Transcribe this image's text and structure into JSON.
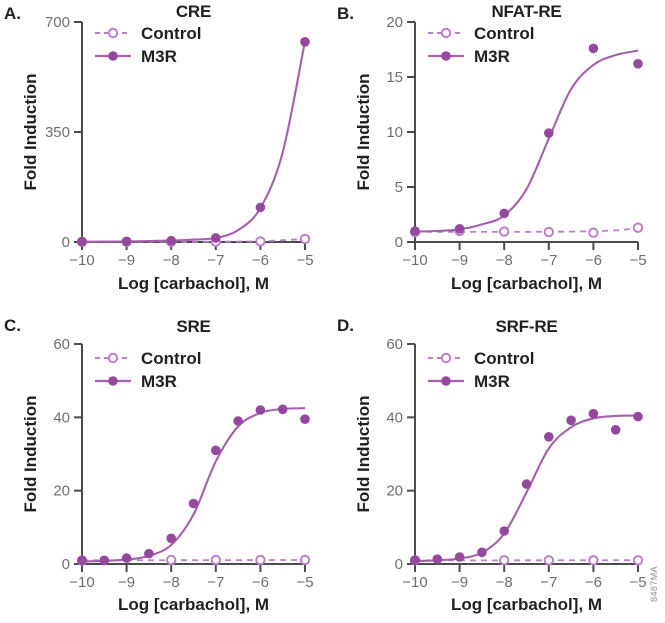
{
  "watermark": "8487MA",
  "colors": {
    "m3r_marker": "#94489E",
    "m3r_line": "#A55FAD",
    "control": "#BB80C6",
    "axis": "#4B4B4D",
    "tick_text": "#6D6E71",
    "label_text": "#231F20"
  },
  "chart_data": [
    {
      "type": "scatter",
      "panel": "A.",
      "title": "CRE",
      "xlabel": "Log [carbachol], M",
      "ylabel": "Fold Induction",
      "xlim": [
        -10,
        -5
      ],
      "ylim": [
        0,
        700
      ],
      "xticks": [
        -10,
        -9,
        -8,
        -7,
        -6,
        -5
      ],
      "xtick_labels": [
        "−10",
        "−9",
        "−8",
        "−7",
        "−6",
        "−5"
      ],
      "yticks": [
        0,
        350,
        700
      ],
      "ytick_labels": [
        "0",
        "350",
        "700"
      ],
      "legend_position": "top-left-inside",
      "grid": false,
      "series": [
        {
          "name": "Control",
          "style": "dashed_open",
          "x": [
            -10,
            -9,
            -8,
            -7,
            -6,
            -5
          ],
          "y": [
            0.5,
            0.5,
            0.5,
            1,
            2,
            10
          ],
          "curve": [
            [
              -10,
              0.8
            ],
            [
              -8,
              0.8
            ],
            [
              -7,
              1.2
            ],
            [
              -6,
              2.5
            ],
            [
              -5,
              9.5
            ]
          ]
        },
        {
          "name": "M3R",
          "style": "solid_filled",
          "x": [
            -10,
            -9,
            -8,
            -7,
            -6,
            -5
          ],
          "y": [
            1,
            2,
            4,
            13,
            110,
            637
          ],
          "curve": [
            [
              -10,
              1
            ],
            [
              -9.5,
              1.3
            ],
            [
              -9,
              2
            ],
            [
              -8.5,
              3
            ],
            [
              -8,
              4.5
            ],
            [
              -7.5,
              7.5
            ],
            [
              -7,
              13
            ],
            [
              -6.5,
              38
            ],
            [
              -6,
              108
            ],
            [
              -5.5,
              285
            ],
            [
              -5,
              640
            ]
          ]
        }
      ]
    },
    {
      "type": "scatter",
      "panel": "B.",
      "title": "NFAT-RE",
      "xlabel": "Log [carbachol], M",
      "ylabel": "Fold Induction",
      "xlim": [
        -10,
        -5
      ],
      "ylim": [
        0,
        20
      ],
      "xticks": [
        -10,
        -9,
        -8,
        -7,
        -6,
        -5
      ],
      "xtick_labels": [
        "−10",
        "−9",
        "−8",
        "−7",
        "−6",
        "−5"
      ],
      "yticks": [
        0,
        5,
        10,
        15,
        20
      ],
      "ytick_labels": [
        "0",
        "5",
        "10",
        "15",
        "20"
      ],
      "legend_position": "top-left-inside",
      "grid": false,
      "series": [
        {
          "name": "Control",
          "style": "dashed_open",
          "x": [
            -10,
            -9,
            -8,
            -7,
            -6,
            -5
          ],
          "y": [
            0.9,
            1.0,
            0.95,
            0.9,
            0.85,
            1.3
          ],
          "curve": [
            [
              -10,
              0.92
            ],
            [
              -8,
              0.92
            ],
            [
              -6.5,
              0.95
            ],
            [
              -5.5,
              1.05
            ],
            [
              -5,
              1.3
            ]
          ]
        },
        {
          "name": "M3R",
          "style": "solid_filled",
          "x": [
            -10,
            -9,
            -8,
            -7,
            -6,
            -5
          ],
          "y": [
            1.0,
            1.2,
            2.6,
            9.9,
            17.6,
            16.2
          ],
          "curve": [
            [
              -10,
              0.95
            ],
            [
              -9.5,
              1.0
            ],
            [
              -9,
              1.15
            ],
            [
              -8.5,
              1.6
            ],
            [
              -8,
              2.4
            ],
            [
              -7.5,
              4.8
            ],
            [
              -7,
              9.4
            ],
            [
              -6.5,
              13.9
            ],
            [
              -6,
              16.1
            ],
            [
              -5.5,
              17.0
            ],
            [
              -5,
              17.4
            ]
          ]
        }
      ]
    },
    {
      "type": "scatter",
      "panel": "C.",
      "title": "SRE",
      "xlabel": "Log [carbachol], M",
      "ylabel": "Fold Induction",
      "xlim": [
        -10,
        -5
      ],
      "ylim": [
        0,
        60
      ],
      "xticks": [
        -10,
        -9,
        -8,
        -7,
        -6,
        -5
      ],
      "xtick_labels": [
        "−10",
        "−9",
        "−8",
        "−7",
        "−6",
        "−5"
      ],
      "yticks": [
        0,
        20,
        40,
        60
      ],
      "ytick_labels": [
        "0",
        "20",
        "40",
        "60"
      ],
      "legend_position": "top-left-inside",
      "grid": false,
      "series": [
        {
          "name": "Control",
          "style": "dashed_open",
          "x": [
            -10,
            -8,
            -7,
            -6,
            -5
          ],
          "y": [
            0.9,
            1.1,
            1.1,
            1.1,
            1.1
          ],
          "curve": [
            [
              -10,
              1.0
            ],
            [
              -7.5,
              1.05
            ],
            [
              -5,
              1.1
            ]
          ]
        },
        {
          "name": "M3R",
          "style": "solid_filled",
          "x": [
            -10,
            -9.5,
            -9,
            -8.5,
            -8,
            -7.5,
            -7,
            -6.5,
            -6,
            -5.5,
            -5
          ],
          "y": [
            1.0,
            1.0,
            1.6,
            2.8,
            7.0,
            16.5,
            31,
            39,
            42,
            42.2,
            39.5
          ],
          "curve": [
            [
              -10,
              0.7
            ],
            [
              -9.5,
              0.85
            ],
            [
              -9,
              1.2
            ],
            [
              -8.5,
              2.2
            ],
            [
              -8,
              5.2
            ],
            [
              -7.5,
              13.5
            ],
            [
              -7,
              28
            ],
            [
              -6.5,
              37.5
            ],
            [
              -6,
              41.2
            ],
            [
              -5.5,
              42.3
            ],
            [
              -5,
              42.5
            ]
          ]
        }
      ]
    },
    {
      "type": "scatter",
      "panel": "D.",
      "title": "SRF-RE",
      "xlabel": "Log [carbachol], M",
      "ylabel": "Fold Induction",
      "xlim": [
        -10,
        -5
      ],
      "ylim": [
        0,
        60
      ],
      "xticks": [
        -10,
        -9,
        -8,
        -7,
        -6,
        -5
      ],
      "xtick_labels": [
        "−10",
        "−9",
        "−8",
        "−7",
        "−6",
        "−5"
      ],
      "yticks": [
        0,
        20,
        40,
        60
      ],
      "ytick_labels": [
        "0",
        "20",
        "40",
        "60"
      ],
      "legend_position": "top-left-inside",
      "grid": false,
      "series": [
        {
          "name": "Control",
          "style": "dashed_open",
          "x": [
            -10,
            -8,
            -7,
            -6,
            -5
          ],
          "y": [
            1.0,
            1.0,
            1.0,
            1.0,
            1.0
          ],
          "curve": [
            [
              -10,
              1.0
            ],
            [
              -7.5,
              1.0
            ],
            [
              -5,
              1.05
            ]
          ]
        },
        {
          "name": "M3R",
          "style": "solid_filled",
          "x": [
            -10,
            -9.5,
            -9,
            -8.5,
            -8,
            -7.5,
            -7,
            -6.5,
            -6,
            -5.5,
            -5
          ],
          "y": [
            1.0,
            1.3,
            1.9,
            3.2,
            9.0,
            21.8,
            34.7,
            39.2,
            41.0,
            36.6,
            40.2
          ],
          "curve": [
            [
              -10,
              0.8
            ],
            [
              -9.5,
              1.0
            ],
            [
              -9,
              1.5
            ],
            [
              -8.5,
              3.1
            ],
            [
              -8,
              8.3
            ],
            [
              -7.5,
              19.5
            ],
            [
              -7,
              31.5
            ],
            [
              -6.5,
              37.3
            ],
            [
              -6,
              39.7
            ],
            [
              -5.5,
              40.4
            ],
            [
              -5,
              40.5
            ]
          ]
        }
      ]
    }
  ]
}
